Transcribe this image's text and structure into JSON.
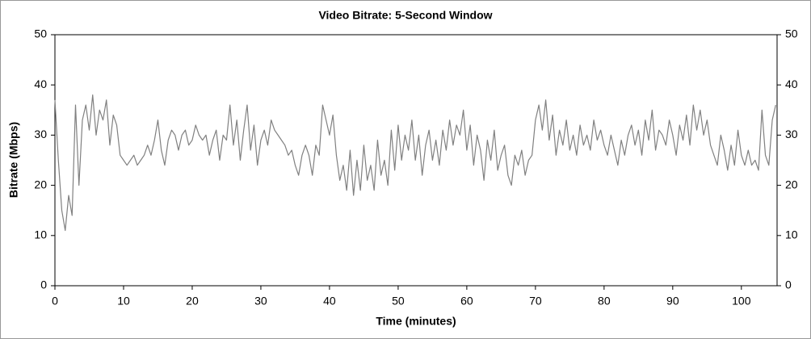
{
  "chart_data": {
    "type": "line",
    "title": "Video Bitrate: 5-Second Window",
    "x_label": "Time (minutes)",
    "y_label": "Bitrate (Mbps)",
    "color": "#808080",
    "xlim": [
      0,
      105.2
    ],
    "xticks": [
      0,
      10,
      20,
      30,
      40,
      50,
      60,
      70,
      80,
      90,
      100
    ],
    "ylim": [
      0,
      50
    ],
    "yticks": [
      0,
      10,
      20,
      30,
      40,
      50
    ],
    "y2lim": [
      0,
      50
    ],
    "y2ticks": [
      0,
      10,
      20,
      30,
      40,
      50
    ],
    "grid": false,
    "x": [
      0,
      0.5,
      1,
      1.5,
      2,
      2.5,
      3,
      3.5,
      4,
      4.5,
      5,
      5.5,
      6,
      6.5,
      7,
      7.5,
      8,
      8.5,
      9,
      9.5,
      10,
      10.5,
      11,
      11.5,
      12,
      12.5,
      13,
      13.5,
      14,
      14.5,
      15,
      15.5,
      16,
      16.5,
      17,
      17.5,
      18,
      18.5,
      19,
      19.5,
      20,
      20.5,
      21,
      21.5,
      22,
      22.5,
      23,
      23.5,
      24,
      24.5,
      25,
      25.5,
      26,
      26.5,
      27,
      27.5,
      28,
      28.5,
      29,
      29.5,
      30,
      30.5,
      31,
      31.5,
      32,
      32.5,
      33,
      33.5,
      34,
      34.5,
      35,
      35.5,
      36,
      36.5,
      37,
      37.5,
      38,
      38.5,
      39,
      39.5,
      40,
      40.5,
      41,
      41.5,
      42,
      42.5,
      43,
      43.5,
      44,
      44.5,
      45,
      45.5,
      46,
      46.5,
      47,
      47.5,
      48,
      48.5,
      49,
      49.5,
      50,
      50.5,
      51,
      51.5,
      52,
      52.5,
      53,
      53.5,
      54,
      54.5,
      55,
      55.5,
      56,
      56.5,
      57,
      57.5,
      58,
      58.5,
      59,
      59.5,
      60,
      60.5,
      61,
      61.5,
      62,
      62.5,
      63,
      63.5,
      64,
      64.5,
      65,
      65.5,
      66,
      66.5,
      67,
      67.5,
      68,
      68.5,
      69,
      69.5,
      70,
      70.5,
      71,
      71.5,
      72,
      72.5,
      73,
      73.5,
      74,
      74.5,
      75,
      75.5,
      76,
      76.5,
      77,
      77.5,
      78,
      78.5,
      79,
      79.5,
      80,
      80.5,
      81,
      81.5,
      82,
      82.5,
      83,
      83.5,
      84,
      84.5,
      85,
      85.5,
      86,
      86.5,
      87,
      87.5,
      88,
      88.5,
      89,
      89.5,
      90,
      90.5,
      91,
      91.5,
      92,
      92.5,
      93,
      93.5,
      94,
      94.5,
      95,
      95.5,
      96,
      96.5,
      97,
      97.5,
      98,
      98.5,
      99,
      99.5,
      100,
      100.5,
      101,
      101.5,
      102,
      102.5,
      103,
      103.5,
      104,
      104.5,
      105
    ],
    "values": [
      37,
      25,
      15,
      11,
      18,
      14,
      36,
      20,
      33,
      36,
      31,
      38,
      30,
      35,
      33,
      37,
      28,
      34,
      32,
      26,
      25,
      24,
      25,
      26,
      24,
      25,
      26,
      28,
      26,
      29,
      33,
      27,
      24,
      29,
      31,
      30,
      27,
      30,
      31,
      28,
      29,
      32,
      30,
      29,
      30,
      26,
      29,
      31,
      25,
      30,
      29,
      36,
      28,
      33,
      25,
      31,
      36,
      27,
      32,
      24,
      29,
      31,
      28,
      33,
      31,
      30,
      29,
      28,
      26,
      27,
      24,
      22,
      26,
      28,
      26,
      22,
      28,
      26,
      36,
      33,
      30,
      34,
      26,
      21,
      24,
      19,
      27,
      18,
      25,
      19,
      28,
      21,
      24,
      19,
      29,
      22,
      25,
      20,
      31,
      23,
      32,
      25,
      30,
      27,
      33,
      25,
      30,
      22,
      28,
      31,
      25,
      29,
      24,
      31,
      27,
      33,
      28,
      32,
      30,
      35,
      27,
      32,
      24,
      30,
      27,
      21,
      29,
      25,
      31,
      23,
      26,
      28,
      22,
      20,
      26,
      24,
      27,
      22,
      25,
      26,
      33,
      36,
      31,
      37,
      29,
      34,
      26,
      31,
      28,
      33,
      27,
      30,
      26,
      32,
      28,
      30,
      27,
      33,
      29,
      31,
      28,
      26,
      30,
      27,
      24,
      29,
      26,
      30,
      32,
      28,
      31,
      26,
      33,
      29,
      35,
      27,
      31,
      30,
      28,
      33,
      30,
      26,
      32,
      29,
      34,
      28,
      36,
      31,
      35,
      30,
      33,
      28,
      26,
      24,
      30,
      27,
      23,
      28,
      24,
      31,
      26,
      24,
      27,
      24,
      25,
      23,
      35,
      26,
      24,
      33,
      36
    ]
  }
}
